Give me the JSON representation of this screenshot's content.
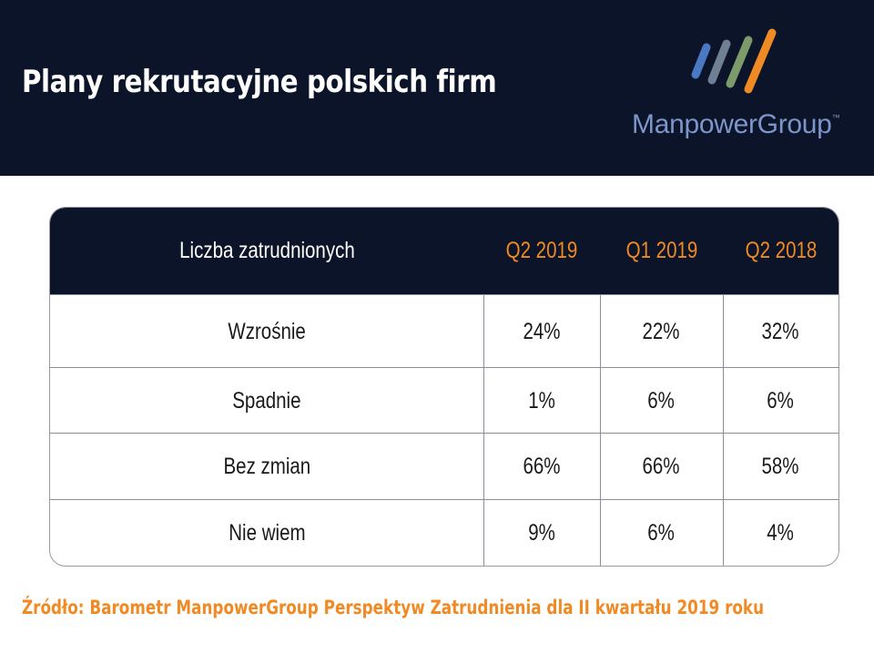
{
  "header": {
    "title": "Plany rekrutacyjne polskich firm",
    "brand": "ManpowerGroup",
    "trademark": "™",
    "background_color": "#0b1428"
  },
  "logo": {
    "stripe_colors": [
      "#4a78c2",
      "#6f7f94",
      "#7d9a6a",
      "#f08a24"
    ]
  },
  "chart_data": {
    "type": "table",
    "columns": [
      "Liczba zatrudnionych",
      "Q2 2019",
      "Q1 2019",
      "Q2 2018"
    ],
    "rows": [
      {
        "label": "Wzrośnie",
        "values": [
          "24%",
          "22%",
          "32%"
        ]
      },
      {
        "label": "Spadnie",
        "values": [
          "1%",
          "6%",
          "6%"
        ]
      },
      {
        "label": "Bez zmian",
        "values": [
          "66%",
          "66%",
          "58%"
        ]
      },
      {
        "label": "Nie wiem",
        "values": [
          "9%",
          "6%",
          "4%"
        ]
      }
    ]
  },
  "footer": {
    "source": "Źródło: Barometr ManpowerGroup Perspektyw Zatrudnienia dla II kwartału 2019 roku"
  },
  "colors": {
    "accent": "#f08a24",
    "header_bg": "#0b1428",
    "brand_text": "#7d95c8"
  }
}
